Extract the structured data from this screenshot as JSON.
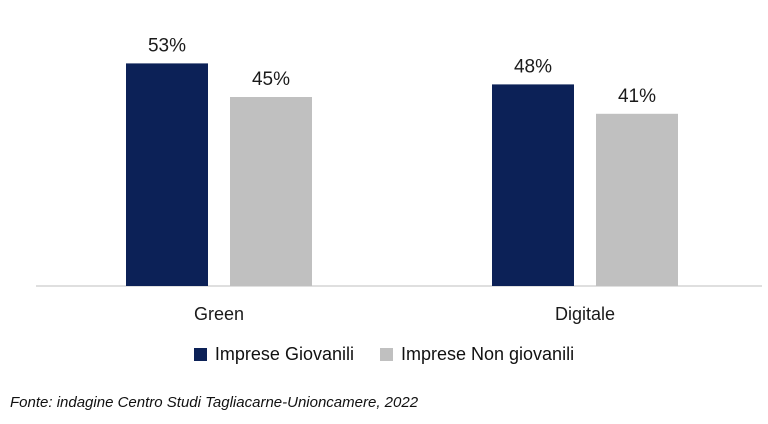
{
  "chart_data": {
    "type": "bar",
    "categories": [
      "Green",
      "Digitale"
    ],
    "series": [
      {
        "name": "Imprese Giovanili",
        "values": [
          53,
          48
        ],
        "labels": [
          "53%",
          "48%"
        ],
        "color": "#0c2157"
      },
      {
        "name": "Imprese Non giovanili",
        "values": [
          45,
          41
        ],
        "labels": [
          "45%",
          "41%"
        ],
        "color": "#c0c0c0"
      }
    ],
    "ylim": [
      0,
      100
    ],
    "grid": false,
    "legend_position": "bottom",
    "source": "Fonte: indagine Centro Studi Tagliacarne-Unioncamere, 2022"
  }
}
